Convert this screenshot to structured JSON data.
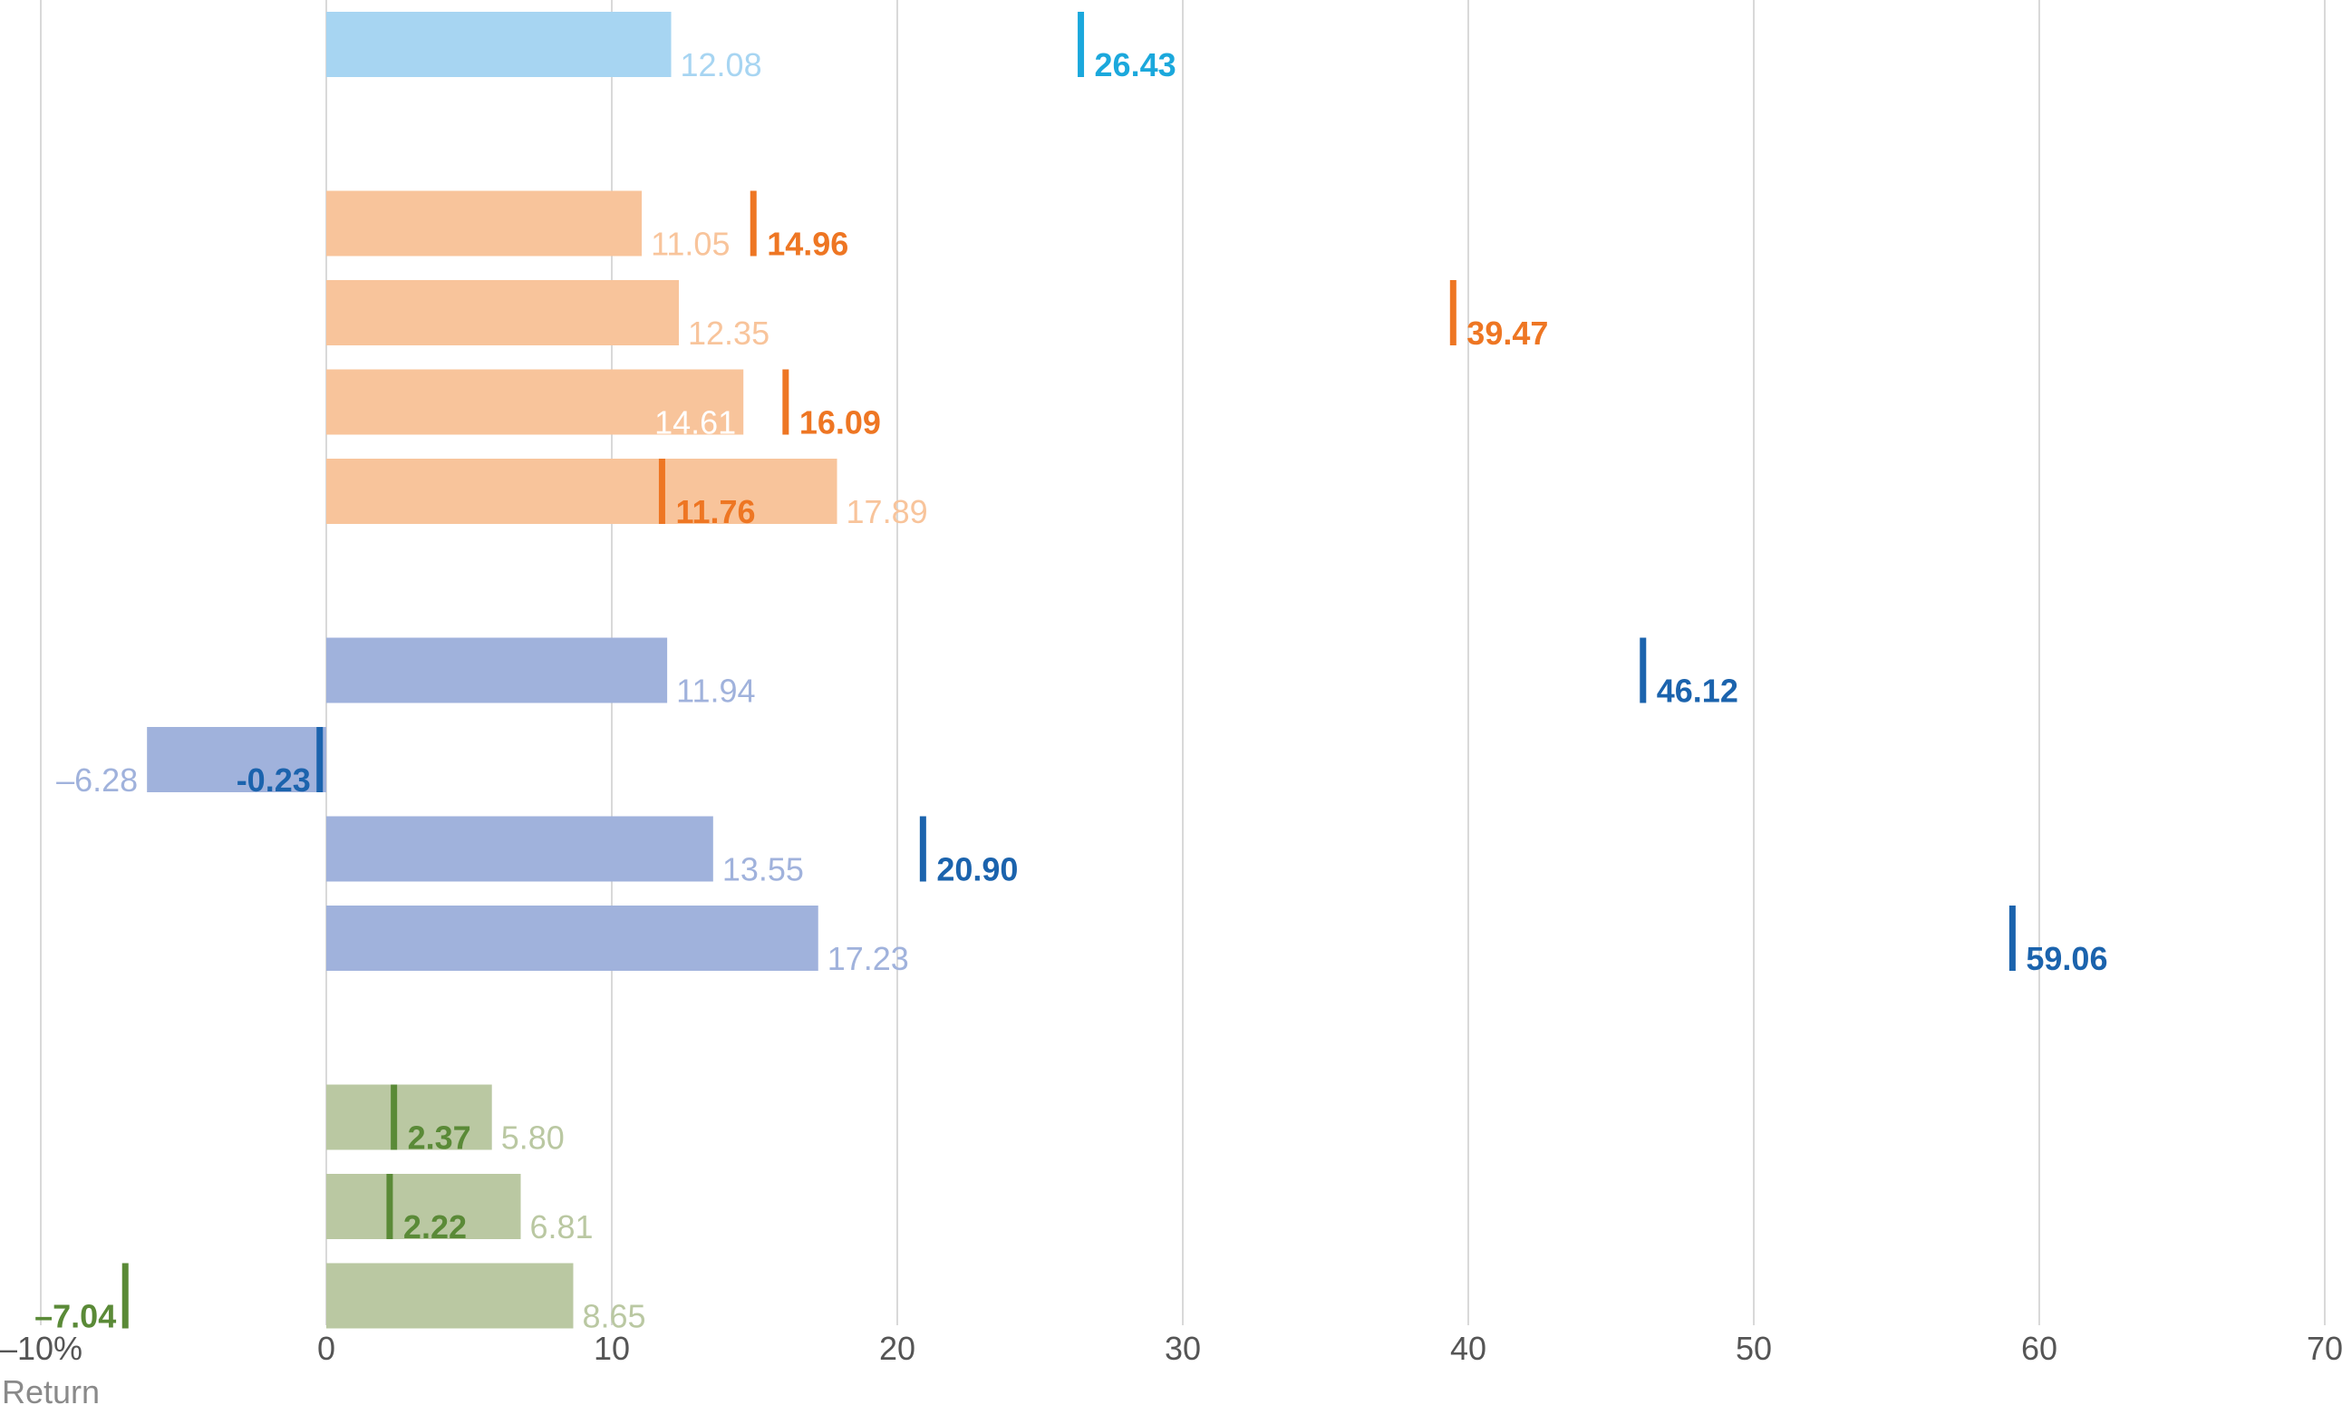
{
  "chart_data": {
    "type": "bar",
    "xlabel": "Return",
    "xlim": [
      -10,
      70
    ],
    "x_ticks": [
      -10,
      0,
      10,
      20,
      30,
      40,
      50,
      60,
      70
    ],
    "x_tick_labels": [
      "–10%",
      "0",
      "10",
      "20",
      "30",
      "40",
      "50",
      "60",
      "70"
    ],
    "grid": true,
    "groups": [
      {
        "bar_color": "#a7d5f2",
        "marker_color": "#1ba8dc",
        "rows": [
          {
            "bar": 12.08,
            "bar_label": "12.08",
            "marker": 26.43,
            "marker_label": "26.43"
          }
        ]
      },
      {
        "bar_color": "#f8c49b",
        "marker_color": "#ee7623",
        "rows": [
          {
            "bar": 11.05,
            "bar_label": "11.05",
            "marker": 14.96,
            "marker_label": "14.96"
          },
          {
            "bar": 12.35,
            "bar_label": "12.35",
            "marker": 39.47,
            "marker_label": "39.47"
          },
          {
            "bar": 14.61,
            "bar_label": "14.61",
            "marker": 16.09,
            "marker_label": "16.09"
          },
          {
            "bar": 17.89,
            "bar_label": "17.89",
            "marker": 11.76,
            "marker_label": "11.76"
          }
        ]
      },
      {
        "bar_color": "#a0b2dc",
        "marker_color": "#1b63ad",
        "rows": [
          {
            "bar": 11.94,
            "bar_label": "11.94",
            "marker": 46.12,
            "marker_label": "46.12"
          },
          {
            "bar": -6.28,
            "bar_label": "–6.28",
            "marker": -0.23,
            "marker_label": "-0.23"
          },
          {
            "bar": 13.55,
            "bar_label": "13.55",
            "marker": 20.9,
            "marker_label": "20.90"
          },
          {
            "bar": 17.23,
            "bar_label": "17.23",
            "marker": 59.06,
            "marker_label": "59.06"
          }
        ]
      },
      {
        "bar_color": "#bac8a2",
        "marker_color": "#5a8a37",
        "rows": [
          {
            "bar": 5.8,
            "bar_label": "5.80",
            "marker": 2.37,
            "marker_label": "2.37"
          },
          {
            "bar": 6.81,
            "bar_label": "6.81",
            "marker": 2.22,
            "marker_label": "2.22"
          },
          {
            "bar": 8.65,
            "bar_label": "8.65",
            "marker": -7.04,
            "marker_label": "–7.04"
          }
        ]
      }
    ]
  }
}
